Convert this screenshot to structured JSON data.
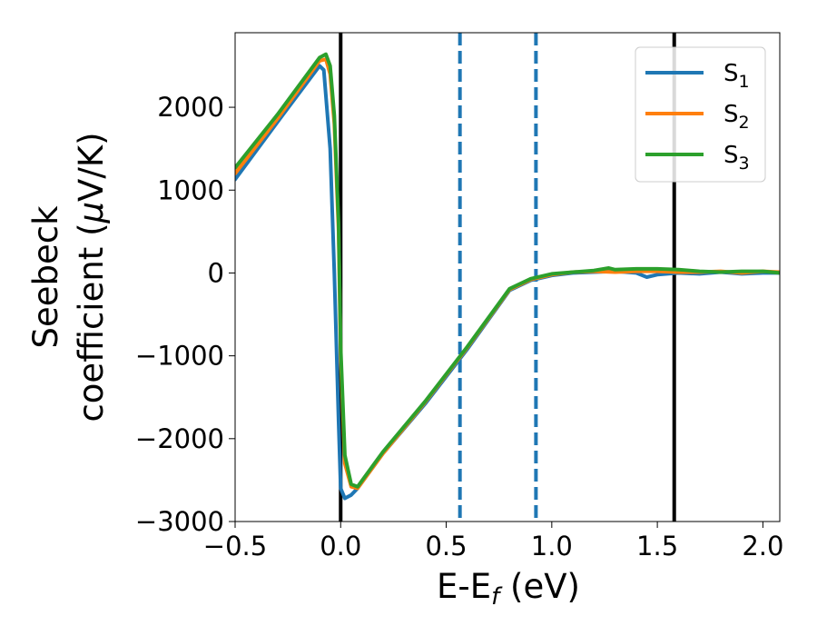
{
  "chart_data": {
    "type": "line",
    "xlabel": "E-E",
    "xlabel_sub": "f",
    "xlabel_unit": " (eV)",
    "ylabel_line1": "Seebeck",
    "ylabel_line2": "coefficient  (",
    "ylabel_mu": "μ",
    "ylabel_unit": "V/K)",
    "xlim": [
      -0.5,
      2.08
    ],
    "ylim": [
      -3000,
      2900
    ],
    "x_ticks": [
      -0.5,
      0.0,
      0.5,
      1.0,
      1.5,
      2.0
    ],
    "x_tick_labels": [
      "−0.5",
      "0.0",
      "0.5",
      "1.0",
      "1.5",
      "2.0"
    ],
    "y_ticks": [
      -3000,
      -2000,
      -1000,
      0,
      1000,
      2000
    ],
    "y_tick_labels": [
      "−3000",
      "−2000",
      "−1000",
      "0",
      "1000",
      "2000"
    ],
    "grid": false,
    "legend_position": "top-right",
    "vertical_lines": [
      {
        "x": 0.0,
        "style": "solid",
        "color": "#000000"
      },
      {
        "x": 0.565,
        "style": "dashed",
        "color": "#1f77b4"
      },
      {
        "x": 0.925,
        "style": "dashed",
        "color": "#1f77b4"
      },
      {
        "x": 1.58,
        "style": "solid",
        "color": "#000000"
      }
    ],
    "series": [
      {
        "name": "S",
        "subscript": "1",
        "color": "#1f77b4",
        "x": [
          -0.5,
          -0.3,
          -0.1,
          -0.08,
          -0.05,
          -0.03,
          -0.01,
          0.0,
          0.02,
          0.05,
          0.08,
          0.2,
          0.4,
          0.6,
          0.8,
          0.9,
          1.0,
          1.1,
          1.2,
          1.3,
          1.4,
          1.45,
          1.5,
          1.6,
          1.7,
          1.8,
          1.9,
          2.0,
          2.08
        ],
        "y": [
          1130,
          1820,
          2500,
          2450,
          1500,
          0,
          -1800,
          -2600,
          -2720,
          -2680,
          -2600,
          -2180,
          -1580,
          -920,
          -210,
          -90,
          -30,
          0,
          10,
          20,
          0,
          -50,
          -20,
          0,
          -10,
          10,
          -10,
          0,
          0
        ]
      },
      {
        "name": "S",
        "subscript": "2",
        "color": "#ff7f0e",
        "x": [
          -0.5,
          -0.3,
          -0.1,
          -0.07,
          -0.05,
          -0.03,
          -0.01,
          0.0,
          0.02,
          0.05,
          0.08,
          0.2,
          0.4,
          0.6,
          0.8,
          0.9,
          1.0,
          1.1,
          1.2,
          1.3,
          1.4,
          1.5,
          1.6,
          1.7,
          1.8,
          1.9,
          2.0,
          2.08
        ],
        "y": [
          1200,
          1860,
          2560,
          2580,
          2400,
          1800,
          500,
          -1000,
          -2300,
          -2580,
          -2600,
          -2180,
          -1560,
          -900,
          -200,
          -80,
          -20,
          10,
          20,
          10,
          20,
          20,
          10,
          10,
          20,
          0,
          20,
          10
        ]
      },
      {
        "name": "S",
        "subscript": "3",
        "color": "#2ca02c",
        "x": [
          -0.5,
          -0.3,
          -0.1,
          -0.07,
          -0.05,
          -0.03,
          -0.01,
          0.0,
          0.02,
          0.05,
          0.08,
          0.2,
          0.4,
          0.6,
          0.8,
          0.9,
          1.0,
          1.1,
          1.2,
          1.27,
          1.3,
          1.4,
          1.5,
          1.6,
          1.7,
          1.8,
          1.9,
          2.0,
          2.08
        ],
        "y": [
          1270,
          1910,
          2600,
          2640,
          2500,
          1900,
          600,
          -900,
          -2200,
          -2550,
          -2580,
          -2160,
          -1550,
          -890,
          -190,
          -70,
          -10,
          10,
          30,
          60,
          40,
          50,
          50,
          40,
          20,
          10,
          20,
          20,
          0
        ]
      }
    ]
  }
}
